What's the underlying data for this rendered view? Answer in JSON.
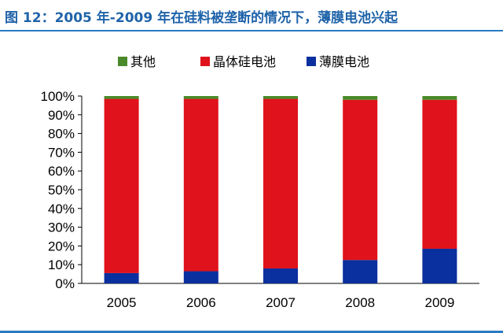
{
  "header": {
    "title": "图 12：2005 年-2009 年在硅料被垄断的情况下，薄膜电池兴起"
  },
  "chart_data": {
    "type": "bar",
    "stacked": true,
    "categories": [
      "2005",
      "2006",
      "2007",
      "2008",
      "2009"
    ],
    "series": [
      {
        "name": "薄膜电池",
        "color": "#0a2f9e",
        "values": [
          5.5,
          6.5,
          8,
          12.5,
          18.5
        ]
      },
      {
        "name": "晶体硅电池",
        "color": "#e0121b",
        "values": [
          93,
          92,
          90.5,
          85.5,
          79.5
        ]
      },
      {
        "name": "其他",
        "color": "#4a8a2a",
        "values": [
          1.5,
          1.5,
          1.5,
          2,
          2
        ]
      }
    ],
    "legend_order": [
      "其他",
      "晶体硅电池",
      "薄膜电池"
    ],
    "legend_position": "top",
    "y_ticks": [
      "0%",
      "10%",
      "20%",
      "30%",
      "40%",
      "50%",
      "60%",
      "70%",
      "80%",
      "90%",
      "100%"
    ],
    "ylim": [
      0,
      100
    ],
    "grid": false
  }
}
